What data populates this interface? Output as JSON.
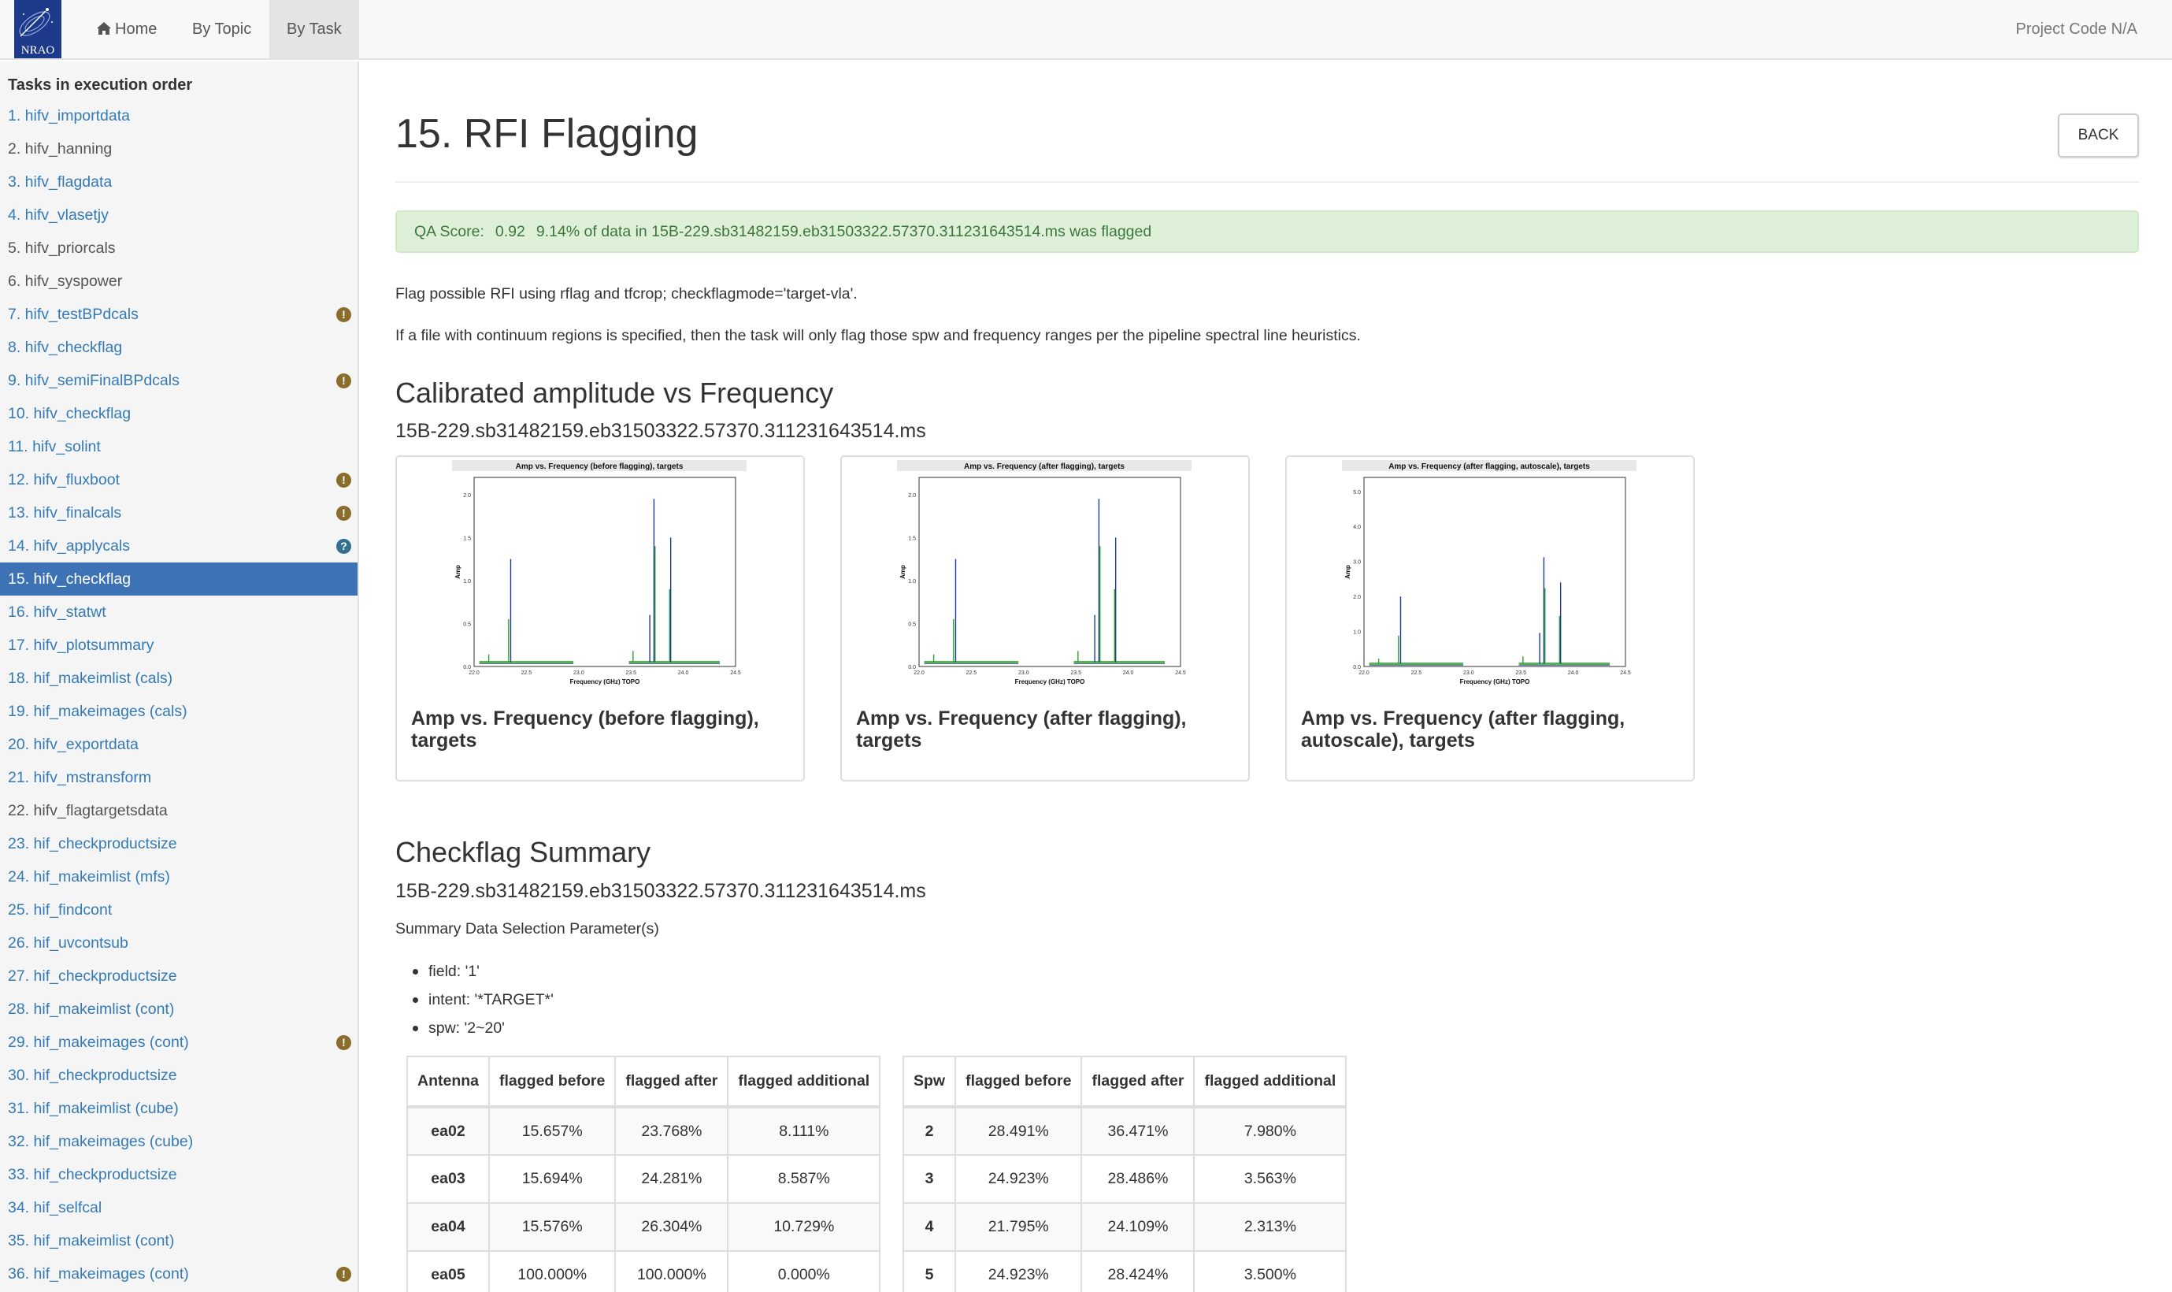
{
  "navbar": {
    "logo_text": "NRAO",
    "links": [
      "Home",
      "By Topic",
      "By Task"
    ],
    "active_link": "By Task",
    "project_code": "Project Code N/A"
  },
  "sidebar": {
    "heading": "Tasks in execution order",
    "items": [
      {
        "label": "1. hifv_importdata",
        "badge": ""
      },
      {
        "label": "2. hifv_hanning",
        "badge": ""
      },
      {
        "label": "3. hifv_flagdata",
        "badge": ""
      },
      {
        "label": "4. hifv_vlasetjy",
        "badge": ""
      },
      {
        "label": "5. hifv_priorcals",
        "badge": ""
      },
      {
        "label": "6. hifv_syspower",
        "badge": ""
      },
      {
        "label": "7. hifv_testBPdcals",
        "badge": "warn"
      },
      {
        "label": "8. hifv_checkflag",
        "badge": ""
      },
      {
        "label": "9. hifv_semiFinalBPdcals",
        "badge": "warn"
      },
      {
        "label": "10. hifv_checkflag",
        "badge": ""
      },
      {
        "label": "11. hifv_solint",
        "badge": ""
      },
      {
        "label": "12. hifv_fluxboot",
        "badge": "warn"
      },
      {
        "label": "13. hifv_finalcals",
        "badge": "warn"
      },
      {
        "label": "14. hifv_applycals",
        "badge": "info"
      },
      {
        "label": "15. hifv_checkflag",
        "badge": ""
      },
      {
        "label": "16. hifv_statwt",
        "badge": ""
      },
      {
        "label": "17. hifv_plotsummary",
        "badge": ""
      },
      {
        "label": "18. hif_makeimlist (cals)",
        "badge": ""
      },
      {
        "label": "19. hif_makeimages (cals)",
        "badge": ""
      },
      {
        "label": "20. hifv_exportdata",
        "badge": ""
      },
      {
        "label": "21. hifv_mstransform",
        "badge": ""
      },
      {
        "label": "22. hifv_flagtargetsdata",
        "badge": ""
      },
      {
        "label": "23. hif_checkproductsize",
        "badge": ""
      },
      {
        "label": "24. hif_makeimlist (mfs)",
        "badge": ""
      },
      {
        "label": "25. hif_findcont",
        "badge": ""
      },
      {
        "label": "26. hif_uvcontsub",
        "badge": ""
      },
      {
        "label": "27. hif_checkproductsize",
        "badge": ""
      },
      {
        "label": "28. hif_makeimlist (cont)",
        "badge": ""
      },
      {
        "label": "29. hif_makeimages (cont)",
        "badge": "warn"
      },
      {
        "label": "30. hif_checkproductsize",
        "badge": ""
      },
      {
        "label": "31. hif_makeimlist (cube)",
        "badge": ""
      },
      {
        "label": "32. hif_makeimages (cube)",
        "badge": ""
      },
      {
        "label": "33. hif_checkproductsize",
        "badge": ""
      },
      {
        "label": "34. hif_selfcal",
        "badge": ""
      },
      {
        "label": "35. hif_makeimlist (cont)",
        "badge": ""
      },
      {
        "label": "36. hif_makeimages (cont)",
        "badge": "warn"
      }
    ],
    "plain_items": [
      1,
      4,
      5,
      21
    ],
    "selected_index": 14
  },
  "main": {
    "title": "15. RFI Flagging",
    "back_label": "BACK",
    "qa": {
      "label": "QA Score:",
      "score": "0.92",
      "message": "9.14% of data in 15B-229.sb31482159.eb31503322.57370.311231643514.ms was flagged",
      "color": "#dff0d8"
    },
    "description_1": "Flag possible RFI using rflag and tfcrop; checkflagmode='target-vla'.",
    "description_2": "If a file with continuum regions is specified, then the task will only flag those spw and frequency ranges per the pipeline spectral line heuristics.",
    "section_plots_title": "Calibrated amplitude vs Frequency",
    "section_plots_ms": "15B-229.sb31482159.eb31503322.57370.311231643514.ms",
    "plots": [
      {
        "caption": "Amp vs. Frequency (before flagging), targets",
        "plot_title": "Amp vs. Frequency (before flagging), targets",
        "xlabel": "Frequency (GHz) TOPO",
        "ylabel": "Amp",
        "yticks": [
          "0.0",
          "0.5",
          "1.0",
          "1.5",
          "2.0"
        ],
        "xticks": [
          "22.0",
          "22.5",
          "23.0",
          "23.5",
          "24.0",
          "24.5"
        ],
        "ymax": 2.2
      },
      {
        "caption": "Amp vs. Frequency (after flagging), targets",
        "plot_title": "Amp vs. Frequency (after flagging), targets",
        "xlabel": "Frequency (GHz) TOPO",
        "ylabel": "Amp",
        "yticks": [
          "0.0",
          "0.5",
          "1.0",
          "1.5",
          "2.0"
        ],
        "xticks": [
          "22.0",
          "22.5",
          "23.0",
          "23.5",
          "24.0",
          "24.5"
        ],
        "ymax": 2.2
      },
      {
        "caption": "Amp vs. Frequency (after flagging, autoscale), targets",
        "plot_title": "Amp vs. Frequency (after flagging, autoscale), targets",
        "xlabel": "Frequency (GHz) TOPO",
        "ylabel": "Amp",
        "yticks": [
          "0.0",
          "1.0",
          "2.0",
          "3.0",
          "4.0",
          "5.0"
        ],
        "xticks": [
          "22.0",
          "22.5",
          "23.0",
          "23.5",
          "24.0",
          "24.5"
        ],
        "ymax": 5.4
      }
    ],
    "section_summary_title": "Checkflag Summary",
    "section_summary_ms": "15B-229.sb31482159.eb31503322.57370.311231643514.ms",
    "selection_label": "Summary Data Selection Parameter(s)",
    "selection": [
      "field: '1'",
      "intent: '*TARGET*'",
      "spw: '2~20'"
    ],
    "antenna_table": {
      "headers": [
        "Antenna",
        "flagged before",
        "flagged after",
        "flagged additional"
      ],
      "rows": [
        [
          "ea02",
          "15.657%",
          "23.768%",
          "8.111%"
        ],
        [
          "ea03",
          "15.694%",
          "24.281%",
          "8.587%"
        ],
        [
          "ea04",
          "15.576%",
          "26.304%",
          "10.729%"
        ],
        [
          "ea05",
          "100.000%",
          "100.000%",
          "0.000%"
        ]
      ]
    },
    "spw_table": {
      "headers": [
        "Spw",
        "flagged before",
        "flagged after",
        "flagged additional"
      ],
      "rows": [
        [
          "2",
          "28.491%",
          "36.471%",
          "7.980%"
        ],
        [
          "3",
          "24.923%",
          "28.486%",
          "3.563%"
        ],
        [
          "4",
          "21.795%",
          "24.109%",
          "2.313%"
        ],
        [
          "5",
          "24.923%",
          "28.424%",
          "3.500%"
        ]
      ]
    }
  }
}
